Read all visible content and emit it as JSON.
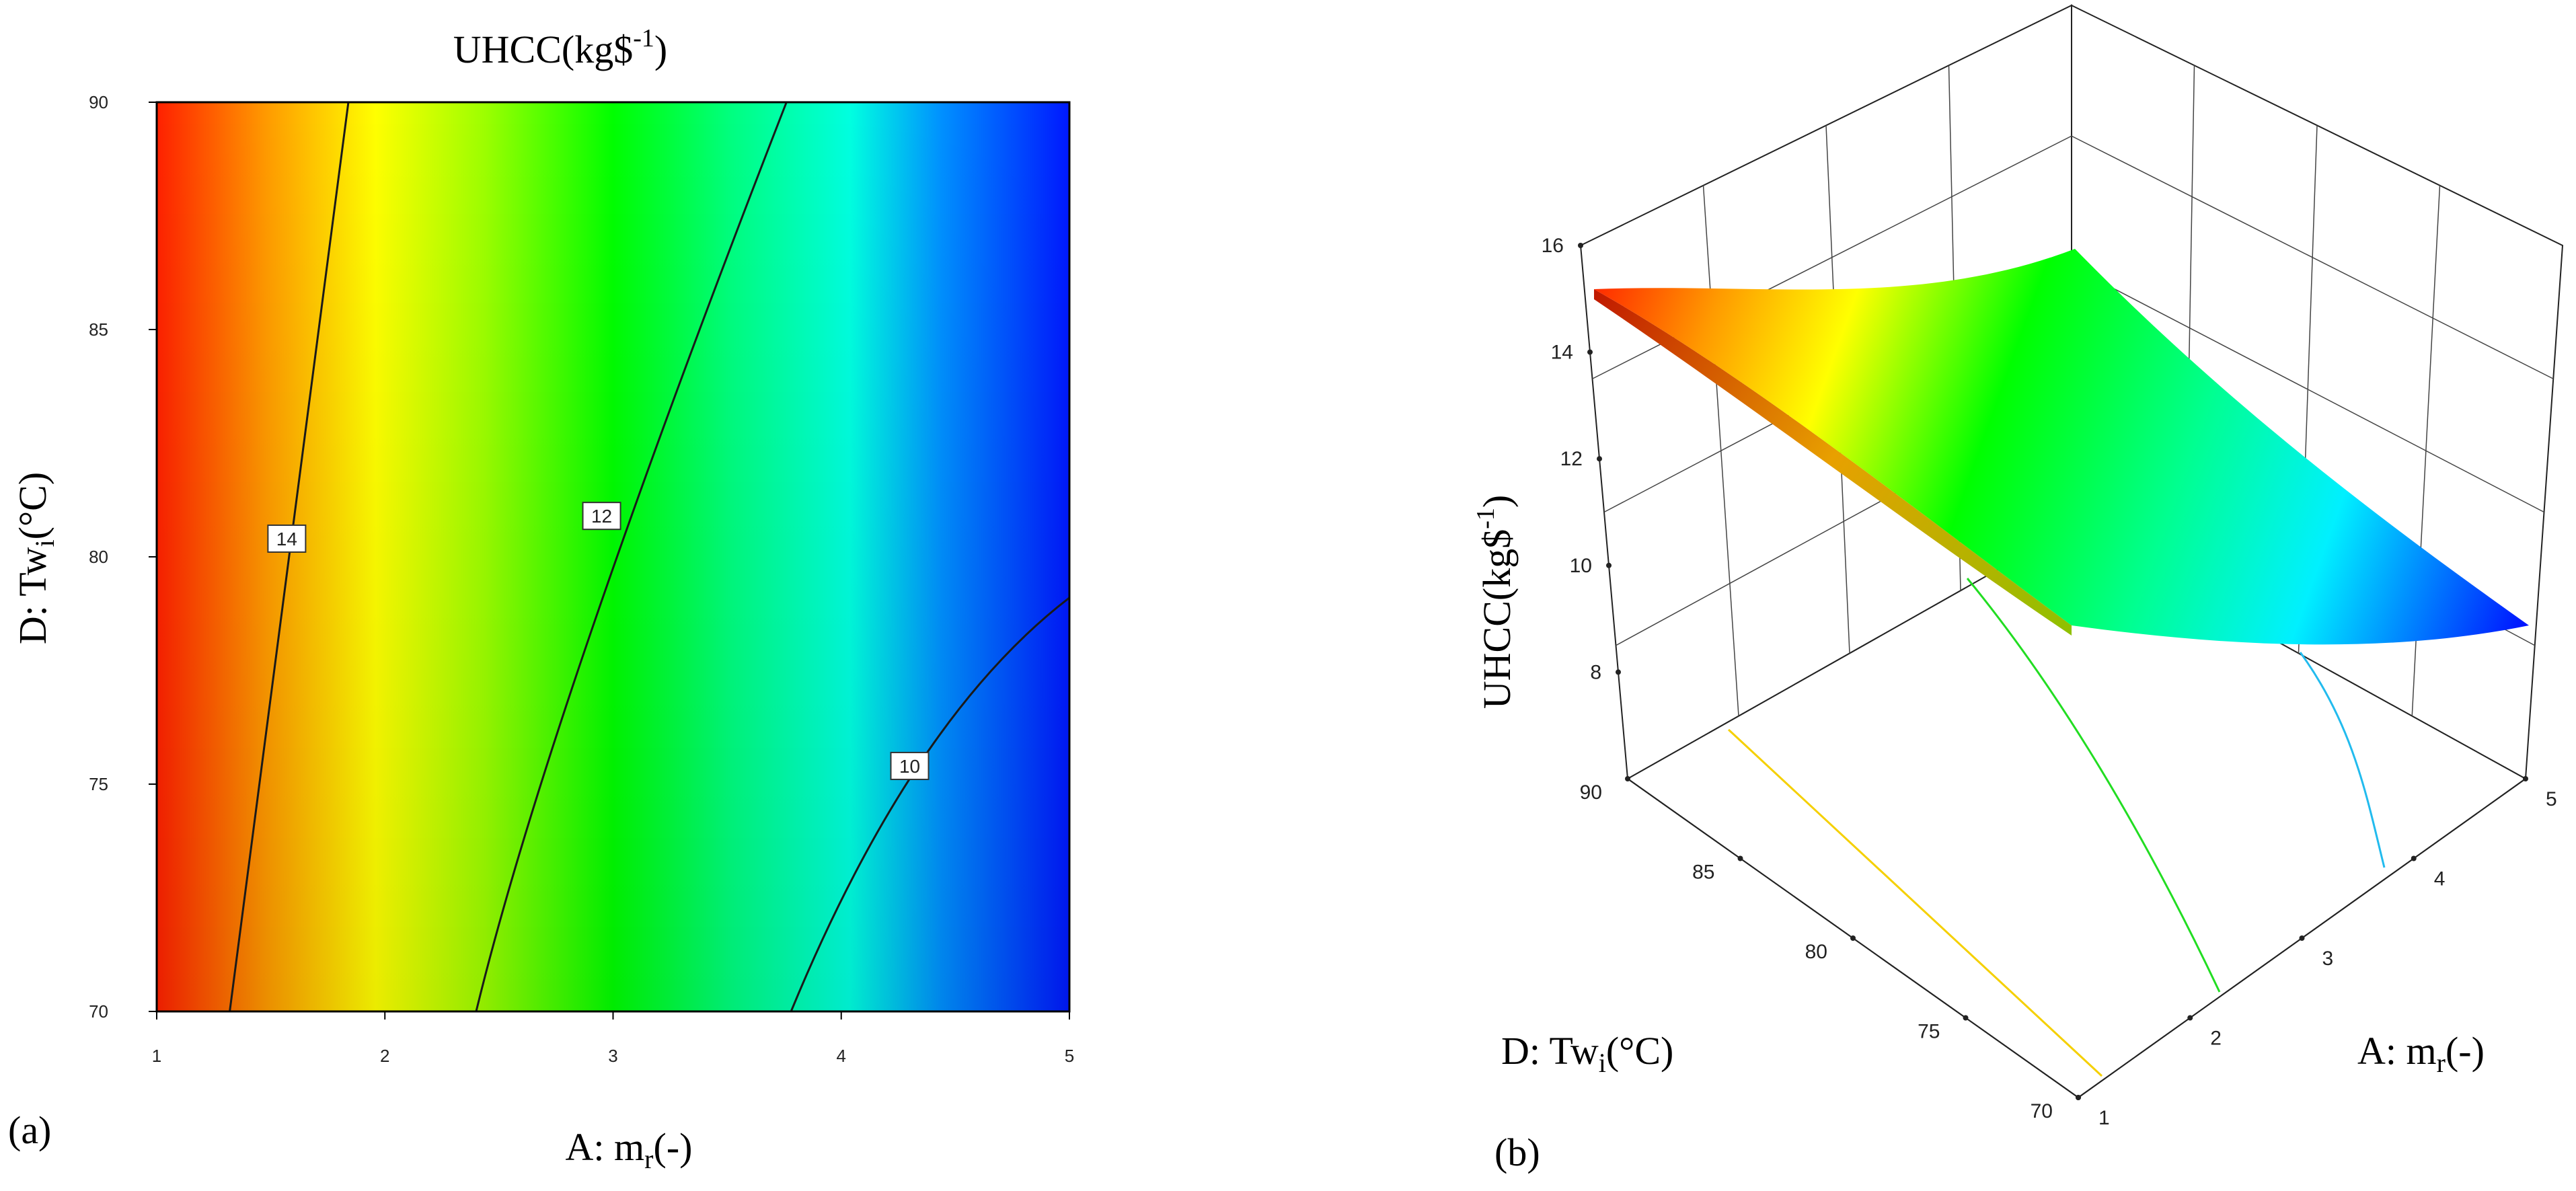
{
  "panel_labels": {
    "a": "(a)",
    "b": "(b)"
  },
  "chart_data": [
    {
      "type": "contour",
      "title_main": "UHCC(kg$",
      "title_sup": "-1",
      "title_close": ")",
      "xlabel_main": "A: m",
      "xlabel_sub": "r",
      "xlabel_unit": "(-)",
      "ylabel_main": "D: Tw",
      "ylabel_sub": "i",
      "ylabel_unit": "(°C)",
      "xlim": [
        1,
        5
      ],
      "ylim": [
        70,
        90
      ],
      "x_ticks": [
        "1",
        "2",
        "3",
        "4",
        "5"
      ],
      "y_ticks": [
        "70",
        "75",
        "80",
        "85",
        "90"
      ],
      "contour_levels": [
        {
          "label": "14",
          "level": 14,
          "line": [
            [
              1.32,
              70
            ],
            [
              1.84,
              90
            ]
          ],
          "label_at": [
            1.57,
            80.4
          ]
        },
        {
          "label": "12",
          "level": 12,
          "line": [
            [
              2.4,
              70
            ],
            [
              2.9,
              78.3
            ],
            [
              3.76,
              90
            ]
          ],
          "label_at": [
            2.95,
            80.9
          ]
        },
        {
          "label": "10",
          "level": 10,
          "line": [
            [
              3.78,
              70
            ],
            [
              4.35,
              75.5
            ],
            [
              5,
              79.1
            ]
          ],
          "label_at": [
            4.3,
            75.4
          ]
        }
      ],
      "colormap": [
        "#0000ff",
        "#00ffff",
        "#00ff00",
        "#ffff00",
        "#ff0000"
      ],
      "zlim": [
        8,
        16
      ]
    },
    {
      "type": "surface3d",
      "zlabel_main": "UHCC(kg$",
      "zlabel_sup": "-1",
      "zlabel_close": ")",
      "xlabel_main": "A: m",
      "xlabel_sub": "r",
      "xlabel_unit": "(-)",
      "ylabel_main": "D: Tw",
      "ylabel_sub": "i",
      "ylabel_unit": "(°C)",
      "x_ticks": [
        "1",
        "2",
        "3",
        "4",
        "5"
      ],
      "y_ticks": [
        "70",
        "75",
        "80",
        "85",
        "90"
      ],
      "z_ticks": [
        "8",
        "10",
        "12",
        "14",
        "16"
      ],
      "xlim": [
        1,
        5
      ],
      "ylim": [
        70,
        90
      ],
      "zlim": [
        8,
        16
      ],
      "surface_corners": [
        {
          "x": 1,
          "y": 90,
          "z": 15.0
        },
        {
          "x": 5,
          "y": 90,
          "z": 11.0
        },
        {
          "x": 1,
          "y": 70,
          "z": 15.2
        },
        {
          "x": 5,
          "y": 70,
          "z": 8.5
        }
      ],
      "floor_contour_colors": [
        "#f5d000",
        "#22dd22",
        "#22bbee"
      ]
    }
  ]
}
